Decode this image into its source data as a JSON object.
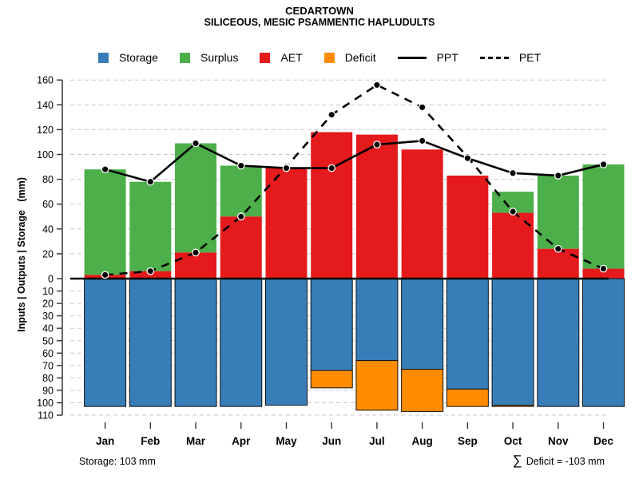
{
  "title": "CEDARTOWN",
  "subtitle": "SILICEOUS, MESIC PSAMMENTIC HAPLUDULTS",
  "legend": [
    {
      "label": "Storage",
      "color": "#377EB8",
      "swatch": "box"
    },
    {
      "label": "Surplus",
      "color": "#4DAF4A",
      "swatch": "box"
    },
    {
      "label": "AET",
      "color": "#E41A1C",
      "swatch": "box"
    },
    {
      "label": "Deficit",
      "color": "#FF8C00",
      "swatch": "box"
    },
    {
      "label": "PPT",
      "color": "#000000",
      "swatch": "solid-line"
    },
    {
      "label": "PET",
      "color": "#000000",
      "swatch": "dashed-line"
    }
  ],
  "chart_data": {
    "type": "bar+line (water balance, mirrored y-axis)",
    "categories": [
      "Jan",
      "Feb",
      "Mar",
      "Apr",
      "May",
      "Jun",
      "Jul",
      "Aug",
      "Sep",
      "Oct",
      "Nov",
      "Dec"
    ],
    "series": [
      {
        "name": "AET",
        "kind": "bar-above",
        "color": "#E41A1C",
        "values": [
          3,
          6,
          21,
          50,
          89,
          118,
          116,
          104,
          83,
          53,
          24,
          8
        ]
      },
      {
        "name": "Surplus",
        "kind": "bar-above-stacked-on-AET",
        "color": "#4DAF4A",
        "values": [
          85,
          72,
          88,
          41,
          0,
          0,
          0,
          0,
          0,
          17,
          59,
          84
        ]
      },
      {
        "name": "Storage",
        "kind": "bar-below",
        "color": "#377EB8",
        "values": [
          103,
          103,
          103,
          103,
          102,
          74,
          66,
          73,
          89,
          102,
          103,
          103
        ]
      },
      {
        "name": "Deficit",
        "kind": "bar-below-stacked-on-Storage",
        "color": "#FF8C00",
        "values": [
          0,
          0,
          0,
          0,
          0,
          14,
          40,
          34,
          14,
          1,
          0,
          0
        ]
      },
      {
        "name": "PPT",
        "kind": "line-solid",
        "color": "#000000",
        "values": [
          88,
          78,
          109,
          91,
          89,
          89,
          108,
          111,
          97,
          85,
          83,
          92
        ]
      },
      {
        "name": "PET",
        "kind": "line-dashed",
        "color": "#000000",
        "values": [
          3,
          6,
          21,
          50,
          90,
          132,
          156,
          138,
          98,
          54,
          24,
          8
        ]
      }
    ],
    "ylabel": "Inputs | Outputs | Storage   (mm)",
    "y_ticks_top": [
      160,
      140,
      120,
      100,
      80,
      60,
      40,
      20
    ],
    "y_ticks_bottom": [
      0,
      10,
      20,
      30,
      40,
      50,
      60,
      70,
      80,
      90,
      100,
      110
    ],
    "ylim_above": [
      0,
      160
    ],
    "ylim_below_inverted": [
      0,
      110
    ],
    "grid": "horizontal dashed",
    "grid_color": "#C9C9C9",
    "legend_position": "top"
  },
  "footer": {
    "storage_note": "Storage: 103 mm",
    "sigma": "∑",
    "deficit_text": "Deficit = -103 mm"
  }
}
